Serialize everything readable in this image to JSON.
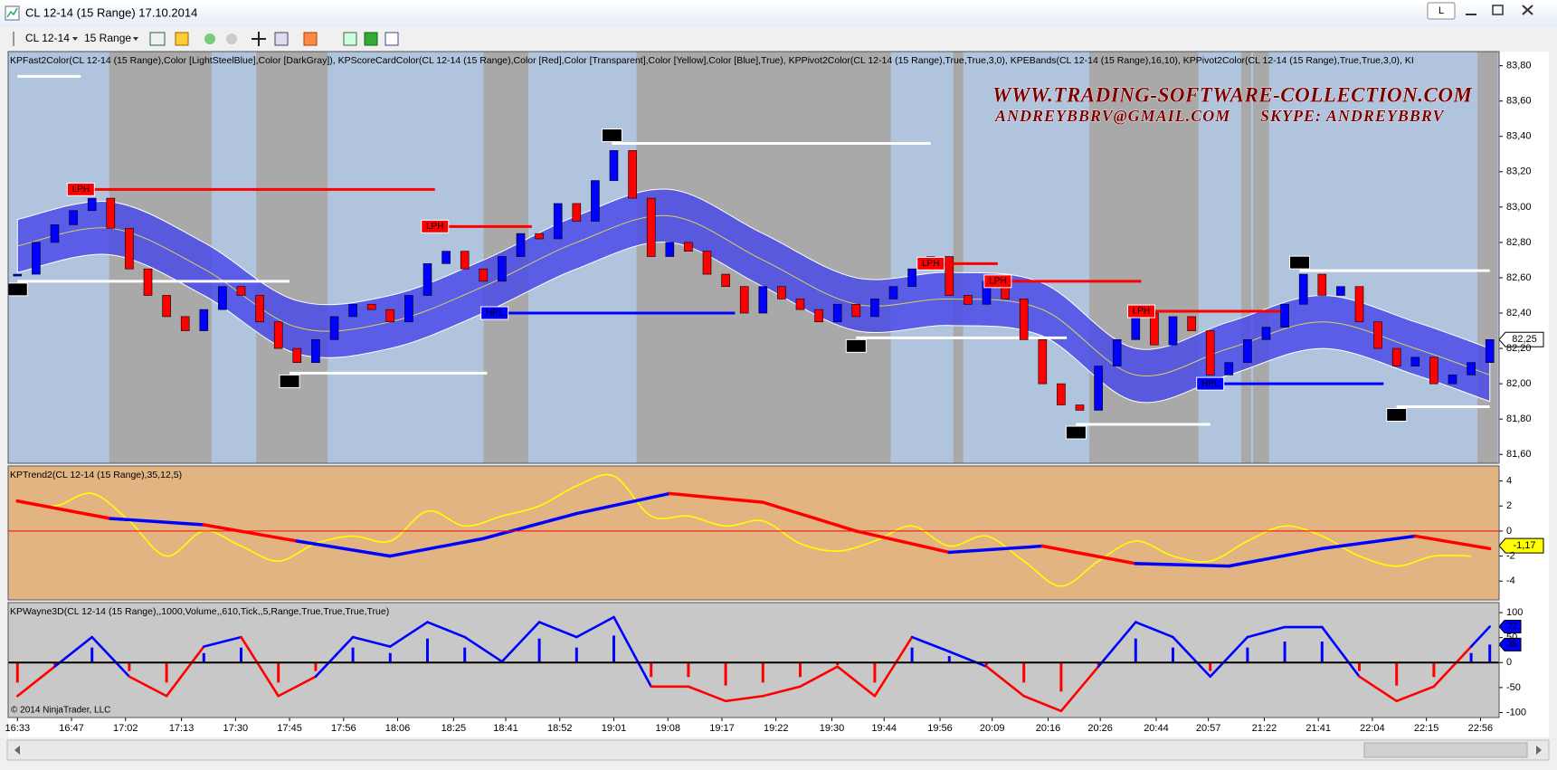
{
  "window": {
    "title": "CL 12-14 (15 Range)  17.10.2014",
    "button": "L",
    "instrument": "CL 12-14",
    "period": "15 Range"
  },
  "chart_data": [
    {
      "type": "candlestick",
      "title": "KPFast2Color(CL 12-14 (15 Range),Color [LightSteelBlue],Color [DarkGray]), KPScoreCardColor(CL 12-14 (15 Range),Color [Red],Color [Transparent],Color [Yellow],Color [Blue],True), KPPivot2Color(CL 12-14 (15 Range),True,True,3,0), KPEBands(CL 12-14 (15 Range),16,10), KPPivot2Color(CL 12-14 (15 Range),True,True,3,0), KI",
      "annotations": [
        "WWW.TRADING-SOFTWARE-COLLECTION.COM",
        "ANDREYBBRV@GMAIL.COM",
        "SKYPE: ANDREYBBRV"
      ],
      "background": [
        "#b0c4de",
        "#a9a9a9"
      ],
      "up_color": "#0000ff",
      "down_color": "#ff0000",
      "closes": [
        82.62,
        82.8,
        82.9,
        82.98,
        83.05,
        82.88,
        82.65,
        82.5,
        82.38,
        82.3,
        82.42,
        82.55,
        82.5,
        82.35,
        82.2,
        82.12,
        82.25,
        82.38,
        82.45,
        82.42,
        82.35,
        82.5,
        82.68,
        82.75,
        82.65,
        82.58,
        82.72,
        82.85,
        82.82,
        83.02,
        82.92,
        83.15,
        83.32,
        83.05,
        82.72,
        82.8,
        82.75,
        82.62,
        82.55,
        82.4,
        82.55,
        82.48,
        82.42,
        82.35,
        82.45,
        82.38,
        82.48,
        82.55,
        82.65,
        82.72,
        82.5,
        82.45,
        82.58,
        82.48,
        82.25,
        82.0,
        81.88,
        81.85,
        82.1,
        82.25,
        82.4,
        82.22,
        82.38,
        82.3,
        82.05,
        82.12,
        82.25,
        82.32,
        82.45,
        82.62,
        82.5,
        82.55,
        82.35,
        82.2,
        82.1,
        82.15,
        82.0,
        82.05,
        82.12,
        82.25
      ],
      "band": {
        "color": "#4b4be6",
        "mid_color": "#d8d060",
        "x": [
          0,
          5,
          10,
          15,
          20,
          25,
          30,
          35,
          40,
          45,
          50,
          55,
          60,
          65,
          70,
          75,
          79
        ],
        "mid": [
          82.78,
          82.88,
          82.65,
          82.32,
          82.35,
          82.55,
          82.8,
          82.95,
          82.7,
          82.45,
          82.48,
          82.42,
          82.05,
          82.2,
          82.35,
          82.2,
          82.05
        ],
        "upper": [
          82.93,
          83.03,
          82.8,
          82.47,
          82.5,
          82.7,
          82.95,
          83.1,
          82.85,
          82.6,
          82.63,
          82.57,
          82.2,
          82.35,
          82.5,
          82.35,
          82.2
        ],
        "lower": [
          82.63,
          82.73,
          82.5,
          82.17,
          82.2,
          82.4,
          82.65,
          82.8,
          82.55,
          82.3,
          82.33,
          82.27,
          81.9,
          82.05,
          82.2,
          82.05,
          81.9
        ]
      },
      "pivots": [
        {
          "price": 83.74,
          "start": 0,
          "end": 3.4,
          "color": "#ffffff"
        },
        {
          "label": "LPH",
          "price": 83.1,
          "start": 3.4,
          "end": 22.4,
          "color": "#ff0000"
        },
        {
          "label": "LPH",
          "price": 82.89,
          "start": 22.4,
          "end": 27.6,
          "color": "#ff0000"
        },
        {
          "label": "PH",
          "price": 83.36,
          "start": 31.9,
          "end": 49.0,
          "color": "#ffffff"
        },
        {
          "label": "LPH",
          "price": 82.68,
          "start": 49.0,
          "end": 52.6,
          "color": "#ff0000"
        },
        {
          "label": "LPH",
          "price": 82.58,
          "start": 52.6,
          "end": 60.3,
          "color": "#ff0000"
        },
        {
          "label": "LPH",
          "price": 82.41,
          "start": 60.3,
          "end": 67.8,
          "color": "#ff0000"
        },
        {
          "label": "PH",
          "price": 82.64,
          "start": 68.8,
          "end": 79,
          "color": "#ffffff"
        },
        {
          "label": "PL",
          "price": 82.58,
          "start": 0,
          "end": 14.6,
          "color": "#ffffff"
        },
        {
          "label": "PL",
          "price": 82.06,
          "start": 14.6,
          "end": 25.2,
          "color": "#ffffff"
        },
        {
          "label": "HPL",
          "price": 82.4,
          "start": 25.6,
          "end": 38.5,
          "color": "#0000ff"
        },
        {
          "label": "PL",
          "price": 82.26,
          "start": 45.0,
          "end": 56.3,
          "color": "#ffffff"
        },
        {
          "label": "PL",
          "price": 81.77,
          "start": 56.8,
          "end": 64.0,
          "color": "#ffffff"
        },
        {
          "label": "HPL",
          "price": 82.0,
          "start": 64.0,
          "end": 73.3,
          "color": "#0000ff"
        },
        {
          "label": "PL",
          "price": 81.87,
          "start": 74.0,
          "end": 79,
          "color": "#ffffff"
        }
      ],
      "last_value": {
        "value": 82.25,
        "label": "82,25"
      },
      "xlim": [
        -0.5,
        79.5
      ],
      "ylim": [
        81.55,
        83.88
      ],
      "yticks": [
        {
          "value": 83.8,
          "label": "83,80"
        },
        {
          "value": 83.6,
          "label": "83,60"
        },
        {
          "value": 83.4,
          "label": "83,40"
        },
        {
          "value": 83.2,
          "label": "83,20"
        },
        {
          "value": 83.0,
          "label": "83,00"
        },
        {
          "value": 82.8,
          "label": "82,80"
        },
        {
          "value": 82.6,
          "label": "82,60"
        },
        {
          "value": 82.4,
          "label": "82,40"
        },
        {
          "value": 82.2,
          "label": "82,20"
        },
        {
          "value": 82.0,
          "label": "82,00"
        },
        {
          "value": 81.8,
          "label": "81,80"
        },
        {
          "value": 81.6,
          "label": "81,60"
        }
      ]
    },
    {
      "type": "line",
      "title": "KPTrend2(CL 12-14 (15 Range),35,12,5)",
      "background": "#e2b482",
      "zero_line_color": "#ff0000",
      "series": [
        {
          "color": "#ffff00",
          "x": [
            0,
            2,
            4,
            6,
            8,
            10,
            12,
            14,
            16,
            18,
            20,
            22,
            24,
            26,
            28,
            30,
            32,
            34,
            36,
            38,
            40,
            42,
            44,
            46,
            48,
            50,
            52,
            54,
            56,
            58,
            60,
            62,
            64,
            66,
            68,
            70,
            72,
            74,
            76,
            78
          ],
          "values": [
            2.4,
            2.0,
            3.0,
            0.8,
            -2.0,
            0,
            -1.2,
            -2.4,
            -1.0,
            -0.4,
            -0.8,
            1.6,
            0.4,
            1.2,
            2.0,
            3.6,
            4.4,
            1.2,
            1.2,
            0.4,
            0.8,
            -1.0,
            -1.6,
            -0.8,
            0.4,
            -1.2,
            -0.4,
            -2.4,
            -4.4,
            -2.4,
            -0.8,
            -2.0,
            -2.4,
            -0.8,
            0.4,
            -0.4,
            -2.0,
            -2.8,
            -2.0,
            -2.0
          ]
        },
        {
          "x": [
            0,
            5,
            10,
            15,
            20,
            25,
            30,
            35,
            40,
            45,
            50,
            55,
            60,
            65,
            70,
            75,
            79
          ],
          "values": [
            2.4,
            1.0,
            0.5,
            -0.8,
            -2.0,
            -0.6,
            1.4,
            3.0,
            2.3,
            0.0,
            -1.7,
            -1.2,
            -2.6,
            -2.8,
            -1.4,
            -0.4,
            -1.4
          ],
          "colors": [
            "#ff0000",
            "#ff0000",
            "#0000ff",
            "#ff0000",
            "#0000ff",
            "#0000ff",
            "#0000ff",
            "#0000ff",
            "#ff0000",
            "#ff0000",
            "#ff0000",
            "#0000ff",
            "#ff0000",
            "#0000ff",
            "#0000ff",
            "#0000ff",
            "#ff0000"
          ]
        }
      ],
      "last_value": {
        "value": -1.17,
        "label": "-1,17"
      },
      "xlim": [
        -0.5,
        79.5
      ],
      "ylim": [
        -5.5,
        5.2
      ],
      "yticks": [
        4,
        2,
        0,
        -2,
        -4
      ]
    },
    {
      "type": "bar-line",
      "title": "KPWayne3D(CL 12-14 (15 Range),,1000,Volume,,610,Tick,,5,Range,True,True,True,True)",
      "footer": "© 2014 NinjaTrader, LLC",
      "background": "#c8c8c8",
      "pos_color": "#0000ff",
      "neg_color": "#ff0000",
      "line": {
        "x": [
          0,
          2,
          4,
          6,
          8,
          10,
          12,
          14,
          16,
          18,
          20,
          22,
          24,
          26,
          28,
          30,
          32,
          34,
          36,
          38,
          40,
          42,
          44,
          46,
          48,
          50,
          52,
          54,
          56,
          58,
          60,
          62,
          64,
          66,
          68,
          70,
          72,
          74,
          76,
          78,
          79
        ],
        "values": [
          -67,
          -8,
          51,
          -28,
          -67,
          32,
          51,
          -67,
          -28,
          51,
          32,
          81,
          51,
          2,
          81,
          51,
          91,
          -48,
          -48,
          -77,
          -67,
          -48,
          -8,
          -67,
          51,
          22,
          -8,
          -67,
          -97,
          -8,
          81,
          51,
          -28,
          51,
          71,
          71,
          -28,
          -77,
          -48,
          32,
          72
        ]
      },
      "histogram": {
        "x": [
          0,
          2,
          4,
          6,
          8,
          10,
          12,
          14,
          16,
          18,
          20,
          22,
          24,
          26,
          28,
          30,
          32,
          34,
          36,
          38,
          40,
          42,
          44,
          46,
          48,
          50,
          52,
          54,
          56,
          58,
          60,
          62,
          64,
          66,
          68,
          70,
          72,
          74,
          76,
          78,
          79
        ],
        "values": [
          -40,
          -5,
          30,
          -17,
          -40,
          19,
          30,
          -40,
          -17,
          30,
          19,
          48,
          30,
          1,
          48,
          30,
          54,
          -29,
          -29,
          -46,
          -40,
          -29,
          -5,
          -40,
          30,
          13,
          -5,
          -40,
          -58,
          -5,
          48,
          30,
          -17,
          30,
          42,
          42,
          -17,
          -46,
          -29,
          19,
          36
        ]
      },
      "xlim": [
        -0.5,
        79.5
      ],
      "ylim": [
        -110,
        120
      ],
      "yticks": [
        100,
        50,
        0,
        -50,
        -100
      ],
      "xticks": [
        {
          "value": 0,
          "label": "16:33"
        },
        {
          "value": 2.9,
          "label": "16:47"
        },
        {
          "value": 5.8,
          "label": "17:02"
        },
        {
          "value": 8.8,
          "label": "17:13"
        },
        {
          "value": 11.7,
          "label": "17:30"
        },
        {
          "value": 14.6,
          "label": "17:45"
        },
        {
          "value": 17.5,
          "label": "17:56"
        },
        {
          "value": 20.4,
          "label": "18:06"
        },
        {
          "value": 23.4,
          "label": "18:25"
        },
        {
          "value": 26.2,
          "label": "18:41"
        },
        {
          "value": 29.1,
          "label": "18:52"
        },
        {
          "value": 32.0,
          "label": "19:01"
        },
        {
          "value": 34.9,
          "label": "19:08"
        },
        {
          "value": 37.8,
          "label": "19:17"
        },
        {
          "value": 40.7,
          "label": "19:22"
        },
        {
          "value": 43.7,
          "label": "19:30"
        },
        {
          "value": 46.5,
          "label": "19:44"
        },
        {
          "value": 49.5,
          "label": "19:56"
        },
        {
          "value": 52.3,
          "label": "20:09"
        },
        {
          "value": 55.3,
          "label": "20:16"
        },
        {
          "value": 58.1,
          "label": "20:26"
        },
        {
          "value": 61.1,
          "label": "20:44"
        },
        {
          "value": 63.9,
          "label": "20:57"
        },
        {
          "value": 66.9,
          "label": "21:22"
        },
        {
          "value": 69.8,
          "label": "21:41"
        },
        {
          "value": 72.7,
          "label": "22:04"
        },
        {
          "value": 75.6,
          "label": "22:15"
        },
        {
          "value": 78.5,
          "label": "22:56"
        }
      ]
    }
  ]
}
